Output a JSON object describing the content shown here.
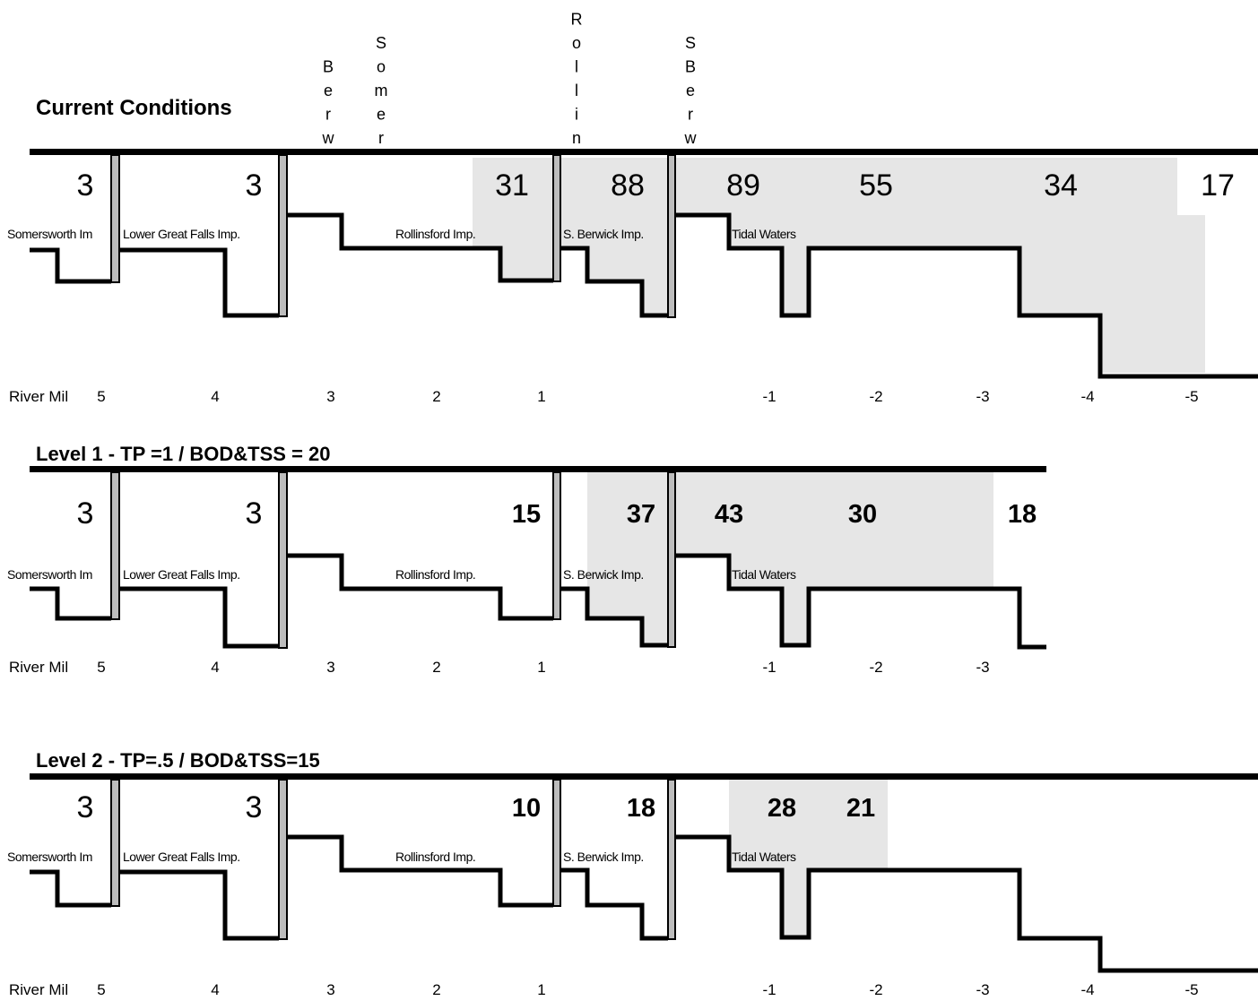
{
  "colors": {
    "shade": "#e6e6e6",
    "dam_fill": "#bdbdbd",
    "line": "#000000"
  },
  "top_labels": [
    {
      "key": "berw1",
      "text": "Berw"
    },
    {
      "key": "somer",
      "text": "Somer"
    },
    {
      "key": "rollin",
      "text": "Rollin"
    },
    {
      "key": "sberw",
      "text": "S Berw"
    }
  ],
  "panels": [
    {
      "key": "current",
      "title": "Current Conditions",
      "values": [
        "3",
        "3",
        "31",
        "88",
        "89",
        "55",
        "34",
        "17"
      ],
      "segments": [
        "Somersworth Im",
        "Lower Great Falls Imp.",
        "Rollinsford Imp.",
        "S. Berwick Imp.",
        "Tidal Waters"
      ],
      "river_mile_label": "River Mil",
      "miles": [
        "5",
        "4",
        "3",
        "2",
        "1",
        "-1",
        "-2",
        "-3",
        "-4",
        "-5"
      ]
    },
    {
      "key": "level1",
      "title": "Level 1 - TP =1 / BOD&TSS = 20",
      "values": [
        "3",
        "3",
        "15",
        "37",
        "43",
        "30",
        "18"
      ],
      "segments": [
        "Somersworth Im",
        "Lower Great Falls Imp.",
        "Rollinsford Imp.",
        "S. Berwick Imp.",
        "Tidal Waters"
      ],
      "river_mile_label": "River Mil",
      "miles": [
        "5",
        "4",
        "3",
        "2",
        "1",
        "-1",
        "-2",
        "-3"
      ]
    },
    {
      "key": "level2",
      "title": "Level 2 - TP=.5 / BOD&TSS=15",
      "values": [
        "3",
        "3",
        "10",
        "18",
        "28",
        "21"
      ],
      "segments": [
        "Somersworth Im",
        "Lower Great Falls Imp.",
        "Rollinsford Imp.",
        "S. Berwick Imp.",
        "Tidal Waters"
      ],
      "river_mile_label": "River Mil",
      "miles": [
        "5",
        "4",
        "3",
        "2",
        "1",
        "-1",
        "-2",
        "-3",
        "-4",
        "-5"
      ]
    }
  ]
}
